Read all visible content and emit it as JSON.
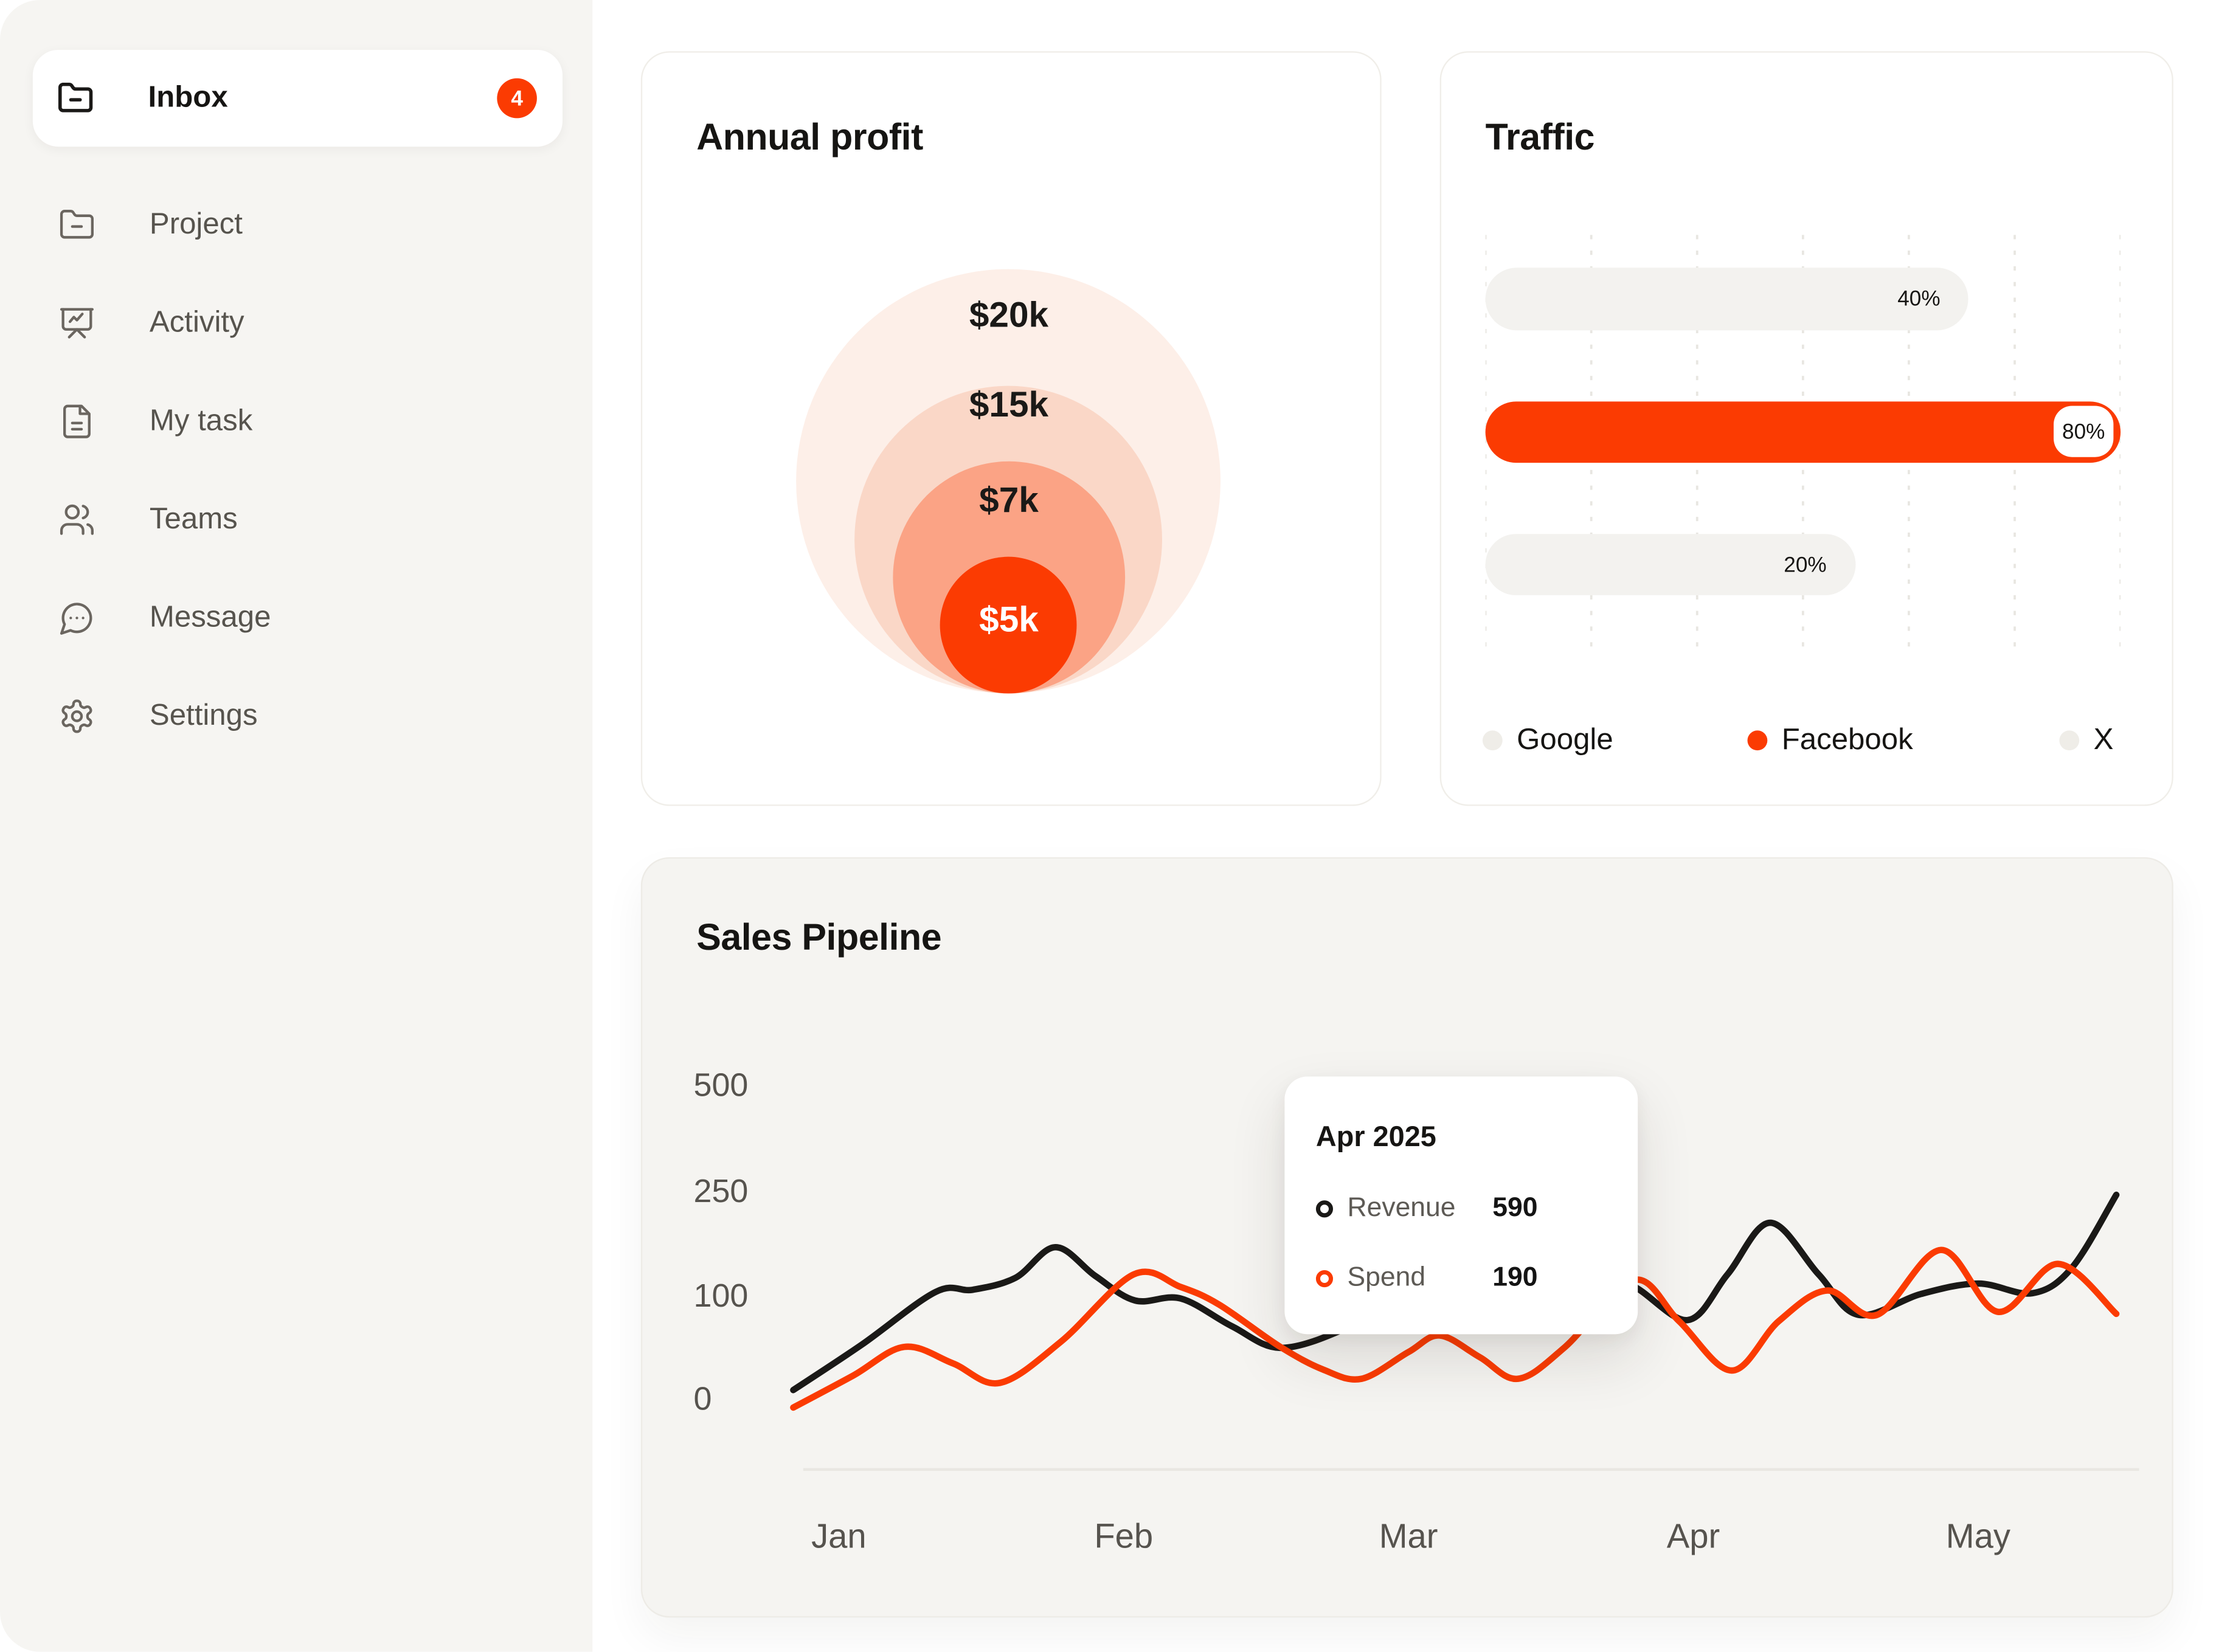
{
  "app": {
    "background": "#FFFFFF",
    "sidebar_background": "#F6F5F2",
    "brand_color": "#FB3B02",
    "text_dark": "#161513",
    "text_gray": "#57544E"
  },
  "sidebar": {
    "items": [
      {
        "label": "Inbox",
        "icon": "folder-minus-icon",
        "badge": "4",
        "active": true
      },
      {
        "label": "Project",
        "icon": "folder-minus-icon",
        "active": false
      },
      {
        "label": "Activity",
        "icon": "presentation-icon",
        "active": false
      },
      {
        "label": "My task",
        "icon": "file-text-icon",
        "active": false
      },
      {
        "label": "Teams",
        "icon": "users-icon",
        "active": false
      },
      {
        "label": "Message",
        "icon": "message-circle-icon",
        "active": false
      },
      {
        "label": "Settings",
        "icon": "gear-icon",
        "active": false
      }
    ]
  },
  "chart_data": [
    {
      "id": "annual-profit",
      "type": "concentric-bubble",
      "title": "Annual profit",
      "values": [
        {
          "label": "$20k",
          "value": 20000,
          "color": "#FDEFE8"
        },
        {
          "label": "$15k",
          "value": 15000,
          "color": "#FAD7C7"
        },
        {
          "label": "$7k",
          "value": 7000,
          "color": "#FBA385"
        },
        {
          "label": "$5k",
          "value": 5000,
          "color": "#FB3B02"
        }
      ],
      "label_color": "#1A1917",
      "inner_label_color": "#FFFFFF",
      "layout": {
        "center_x": 257.4,
        "bottom_y": 450,
        "diameters": [
          298,
          216,
          163,
          96
        ],
        "label_y": [
          185,
          248,
          315,
          399
        ]
      }
    },
    {
      "id": "traffic",
      "type": "bar",
      "title": "Traffic",
      "categories": [
        "Google",
        "Facebook",
        "X"
      ],
      "values": [
        40,
        80,
        20
      ],
      "unit": "%",
      "value_labels": [
        "40%",
        "80%",
        "20%"
      ],
      "highlight_category": "Facebook",
      "track_color": "#F3F2EF",
      "highlight_color": "#FB3B02",
      "grid": "dashed-vertical",
      "legend_position": "bottom",
      "legend": [
        {
          "label": "Google",
          "color": "#EFEDE8"
        },
        {
          "label": "Facebook",
          "color": "#FB3B02"
        },
        {
          "label": "X",
          "color": "#EFEDE8"
        }
      ],
      "layout": {
        "bar_fill_fraction": [
          0.761,
          1.0,
          0.582
        ],
        "bar_tops": [
          151,
          244.6,
          338
        ],
        "bar_heights": [
          44,
          43,
          43
        ],
        "grid_top": 128,
        "grid_bottom": 424,
        "grid_lines": 7,
        "legend_left": [
          29,
          215,
          434
        ]
      }
    },
    {
      "id": "sales-pipeline",
      "type": "line",
      "title": "Sales Pipeline",
      "x_categories": [
        "Jan",
        "Feb",
        "Mar",
        "Apr",
        "May"
      ],
      "y_ticks": [
        0,
        100,
        250,
        500
      ],
      "grid": "off",
      "series": [
        {
          "name": "Revenue",
          "color": "#1A1917",
          "points": [
            [
              -0.16,
              8
            ],
            [
              0.08,
              52
            ],
            [
              0.34,
              105
            ],
            [
              0.47,
              108
            ],
            [
              0.62,
              125
            ],
            [
              0.76,
              169
            ],
            [
              0.9,
              128
            ],
            [
              1.04,
              95
            ],
            [
              1.2,
              97
            ],
            [
              1.38,
              70
            ],
            [
              1.55,
              49
            ],
            [
              1.78,
              68
            ],
            [
              2.0,
              105
            ],
            [
              2.3,
              138
            ],
            [
              2.6,
              128
            ],
            [
              2.78,
              115
            ],
            [
              2.98,
              76
            ],
            [
              3.12,
              130
            ],
            [
              3.27,
              204
            ],
            [
              3.44,
              130
            ],
            [
              3.58,
              81
            ],
            [
              3.8,
              102
            ],
            [
              4.0,
              117
            ],
            [
              4.19,
              103
            ],
            [
              4.33,
              140
            ],
            [
              4.485,
              244
            ]
          ]
        },
        {
          "name": "Spend",
          "color": "#FB3B02",
          "points": [
            [
              -0.16,
              -9
            ],
            [
              0.05,
              22
            ],
            [
              0.23,
              50
            ],
            [
              0.4,
              34
            ],
            [
              0.565,
              15
            ],
            [
              0.78,
              55
            ],
            [
              1.035,
              130
            ],
            [
              1.2,
              112
            ],
            [
              1.335,
              91
            ],
            [
              1.55,
              50
            ],
            [
              1.7,
              28
            ],
            [
              1.835,
              19
            ],
            [
              2.0,
              45
            ],
            [
              2.11,
              61
            ],
            [
              2.25,
              40
            ],
            [
              2.385,
              19
            ],
            [
              2.55,
              50
            ],
            [
              2.79,
              122
            ],
            [
              2.95,
              75
            ],
            [
              3.135,
              27
            ],
            [
              3.3,
              75
            ],
            [
              3.47,
              107
            ],
            [
              3.645,
              81
            ],
            [
              3.87,
              165
            ],
            [
              4.07,
              84
            ],
            [
              4.28,
              145
            ],
            [
              4.485,
              82
            ]
          ]
        }
      ],
      "tooltip": {
        "title": "Apr 2025",
        "rows": [
          {
            "name": "Revenue",
            "value": "590"
          },
          {
            "name": "Spend",
            "value": "190"
          }
        ]
      },
      "axis_text_color": "#56534E",
      "layout": {
        "x0": 138,
        "x_step": 200,
        "value_anchors": [
          [
            0,
            379
          ],
          [
            100,
            306.7
          ],
          [
            250,
            233.2
          ],
          [
            500,
            158.7
          ]
        ],
        "axis_y": 429,
        "axis_x1": 113,
        "axis_x2": 1051,
        "tick_label_x": 36,
        "month_label_y": 484,
        "stroke_width": 4.5
      }
    }
  ]
}
